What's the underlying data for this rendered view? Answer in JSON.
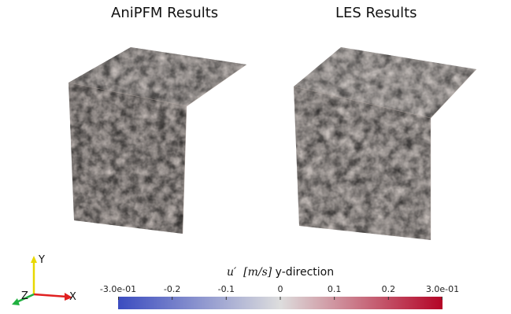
{
  "panels": [
    {
      "title": "AniPFM Results"
    },
    {
      "title": "LES Results"
    }
  ],
  "colorbar": {
    "variable": "u′",
    "unit": "[m/s]",
    "component": "y-direction",
    "min": -0.3,
    "max": 0.3,
    "ticks": [
      "-3.0e-01",
      "-0.2",
      "-0.1",
      "0",
      "0.1",
      "0.2",
      "3.0e-01"
    ],
    "colormap": [
      "#3b4cc0",
      "#dddddd",
      "#b40426"
    ]
  },
  "axes": {
    "x": "X",
    "y": "Y",
    "z": "Z"
  },
  "colors": {
    "x_axis": "#e02020",
    "y_axis": "#e8d800",
    "z_axis": "#20b040"
  }
}
